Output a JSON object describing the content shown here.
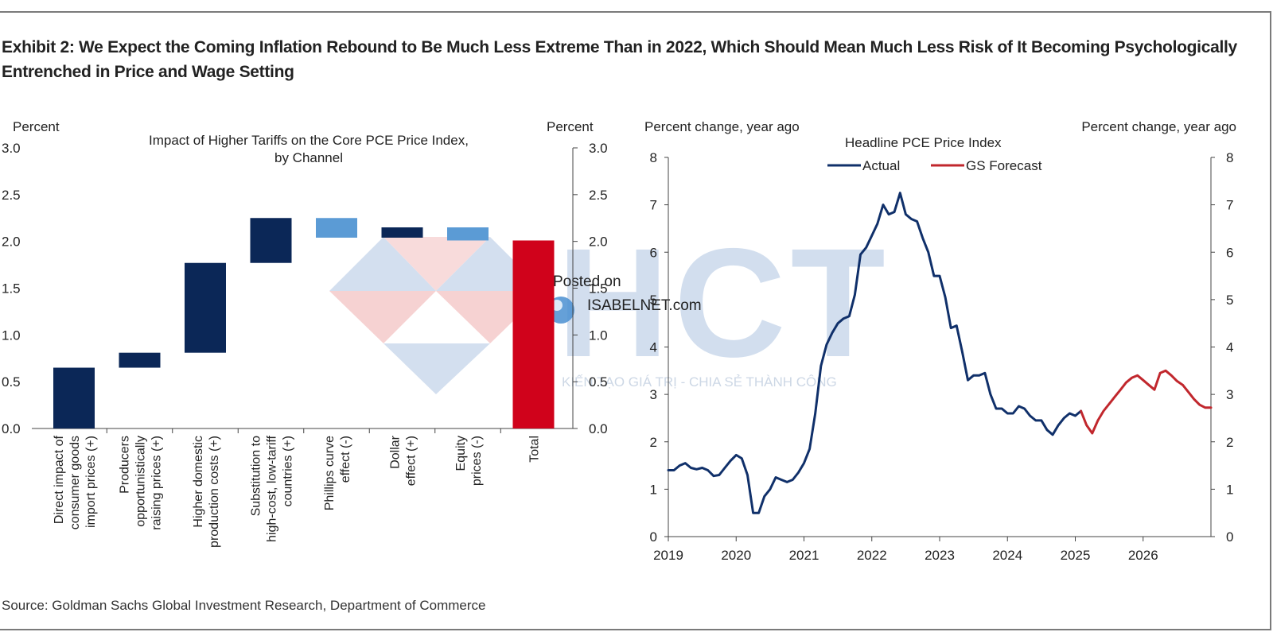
{
  "title": "Exhibit 2: We Expect the Coming Inflation Rebound to Be Much Less Extreme Than in 2022, Which Should Mean Much Less Risk of It Becoming Psychologically Entrenched in Price and Wage Setting",
  "source": "Source: Goldman Sachs Global Investment Research, Department of Commerce",
  "watermark": {
    "letters": "HCT",
    "tagline": "KIẾN TẠO GIÁ TRỊ - CHIA SẺ THÀNH CÔNG",
    "posted_line1": "Posted on",
    "posted_line2": "ISABELNET.com"
  },
  "colors": {
    "navy": "#0b2757",
    "light_blue": "#5b9bd5",
    "red": "#d0021b",
    "forecast_red": "#c1272d",
    "actual_blue": "#10306a"
  },
  "chart_data": [
    {
      "type": "bar",
      "subtype": "waterfall",
      "title": "Impact of Higher Tariffs on the Core PCE Price Index, by Channel",
      "ylabel_left": "Percent",
      "ylabel_right": "Percent",
      "ylim": [
        0,
        3.0
      ],
      "yticks": [
        "0.0",
        "0.5",
        "1.0",
        "1.5",
        "2.0",
        "2.5",
        "3.0"
      ],
      "categories": [
        "Direct impact of consumer goods import prices (+)",
        "Producers opportunistically raising prices (+)",
        "Higher domestic production costs (+)",
        "Substitution to high-cost, low-tariff countries (+)",
        "Phillips curve effect (-)",
        "Dollar effect (+)",
        "Equity prices (-)",
        "Total"
      ],
      "category_lines": [
        [
          "Direct impact of",
          "consumer goods",
          "import prices (+)"
        ],
        [
          "Producers",
          "opportunistically",
          "raising prices (+)"
        ],
        [
          "Higher domestic",
          "production costs (+)"
        ],
        [
          "Substitution to",
          "high-cost, low-tariff",
          "countries (+)"
        ],
        [
          "Phillips curve",
          "effect (-)"
        ],
        [
          "Dollar",
          "effect (+)"
        ],
        [
          "Equity",
          "prices (-)"
        ],
        [
          "Total"
        ]
      ],
      "bars": [
        {
          "start": 0.0,
          "end": 0.65,
          "color": "navy"
        },
        {
          "start": 0.65,
          "end": 0.81,
          "color": "navy"
        },
        {
          "start": 0.81,
          "end": 1.77,
          "color": "navy"
        },
        {
          "start": 1.77,
          "end": 2.25,
          "color": "navy"
        },
        {
          "start": 2.25,
          "end": 2.04,
          "color": "light_blue"
        },
        {
          "start": 2.04,
          "end": 2.15,
          "color": "navy"
        },
        {
          "start": 2.15,
          "end": 2.01,
          "color": "light_blue"
        },
        {
          "start": 0.0,
          "end": 2.01,
          "color": "red"
        }
      ]
    },
    {
      "type": "line",
      "title": "Headline PCE Price Index",
      "ylabel_left": "Percent change, year ago",
      "ylabel_right": "Percent change, year ago",
      "ylim": [
        0,
        8
      ],
      "yticks": [
        "0",
        "1",
        "2",
        "3",
        "4",
        "5",
        "6",
        "7",
        "8"
      ],
      "xlim": [
        2019,
        2027
      ],
      "xticks": [
        "2019",
        "2020",
        "2021",
        "2022",
        "2023",
        "2024",
        "2025",
        "2026"
      ],
      "series": [
        {
          "name": "Actual",
          "color": "actual_blue",
          "x": [
            2019.0,
            2019.083,
            2019.167,
            2019.25,
            2019.333,
            2019.417,
            2019.5,
            2019.583,
            2019.667,
            2019.75,
            2019.833,
            2019.917,
            2020.0,
            2020.083,
            2020.167,
            2020.25,
            2020.333,
            2020.417,
            2020.5,
            2020.583,
            2020.667,
            2020.75,
            2020.833,
            2020.917,
            2021.0,
            2021.083,
            2021.167,
            2021.25,
            2021.333,
            2021.417,
            2021.5,
            2021.583,
            2021.667,
            2021.75,
            2021.833,
            2021.917,
            2022.0,
            2022.083,
            2022.167,
            2022.25,
            2022.333,
            2022.417,
            2022.5,
            2022.583,
            2022.667,
            2022.75,
            2022.833,
            2022.917,
            2023.0,
            2023.083,
            2023.167,
            2023.25,
            2023.333,
            2023.417,
            2023.5,
            2023.583,
            2023.667,
            2023.75,
            2023.833,
            2023.917,
            2024.0,
            2024.083,
            2024.167,
            2024.25,
            2024.333,
            2024.417,
            2024.5,
            2024.583,
            2024.667,
            2024.75,
            2024.833,
            2024.917,
            2025.0,
            2025.083
          ],
          "y": [
            1.4,
            1.4,
            1.5,
            1.55,
            1.45,
            1.42,
            1.45,
            1.4,
            1.28,
            1.3,
            1.45,
            1.6,
            1.72,
            1.65,
            1.3,
            0.5,
            0.5,
            0.85,
            1.0,
            1.25,
            1.2,
            1.15,
            1.2,
            1.35,
            1.55,
            1.85,
            2.6,
            3.6,
            4.05,
            4.3,
            4.5,
            4.6,
            4.65,
            5.1,
            5.95,
            6.1,
            6.35,
            6.6,
            7.0,
            6.8,
            6.85,
            7.25,
            6.8,
            6.7,
            6.65,
            6.3,
            6.0,
            5.5,
            5.5,
            5.05,
            4.4,
            4.45,
            3.9,
            3.3,
            3.4,
            3.4,
            3.45,
            3.0,
            2.7,
            2.7,
            2.6,
            2.6,
            2.75,
            2.7,
            2.55,
            2.45,
            2.45,
            2.25,
            2.15,
            2.35,
            2.5,
            2.6,
            2.55,
            2.65
          ]
        },
        {
          "name": "GS Forecast",
          "color": "forecast_red",
          "x": [
            2025.083,
            2025.167,
            2025.25,
            2025.333,
            2025.417,
            2025.5,
            2025.583,
            2025.667,
            2025.75,
            2025.833,
            2025.917,
            2026.0,
            2026.083,
            2026.167,
            2026.25,
            2026.333,
            2026.417,
            2026.5,
            2026.583,
            2026.667,
            2026.75,
            2026.833,
            2026.917,
            2027.0
          ],
          "y": [
            2.65,
            2.35,
            2.18,
            2.45,
            2.65,
            2.8,
            2.95,
            3.1,
            3.25,
            3.35,
            3.4,
            3.3,
            3.2,
            3.1,
            3.45,
            3.5,
            3.4,
            3.28,
            3.2,
            3.05,
            2.9,
            2.78,
            2.72,
            2.72
          ]
        }
      ]
    }
  ]
}
